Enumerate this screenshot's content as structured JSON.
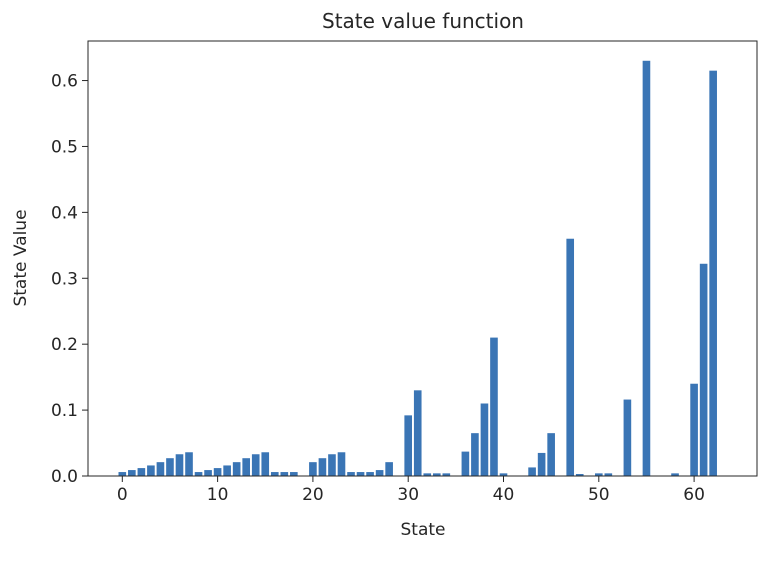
{
  "chart_data": {
    "type": "bar",
    "title": "State value function",
    "xlabel": "State",
    "ylabel": "State Value",
    "xlim": [
      -3.6,
      66.6
    ],
    "ylim": [
      0,
      0.66
    ],
    "xticks": [
      0,
      10,
      20,
      30,
      40,
      50,
      60
    ],
    "xtick_labels": [
      "0",
      "10",
      "20",
      "30",
      "40",
      "50",
      "60"
    ],
    "yticks": [
      0,
      0.1,
      0.2,
      0.3,
      0.4,
      0.5,
      0.6
    ],
    "ytick_labels": [
      "0.0",
      "0.1",
      "0.2",
      "0.3",
      "0.4",
      "0.5",
      "0.6"
    ],
    "grid": false,
    "bar_color": "#3a75b5",
    "categories": [
      0,
      1,
      2,
      3,
      4,
      5,
      6,
      7,
      8,
      9,
      10,
      11,
      12,
      13,
      14,
      15,
      16,
      17,
      18,
      19,
      20,
      21,
      22,
      23,
      24,
      25,
      26,
      27,
      28,
      29,
      30,
      31,
      32,
      33,
      34,
      35,
      36,
      37,
      38,
      39,
      40,
      41,
      42,
      43,
      44,
      45,
      46,
      47,
      48,
      49,
      50,
      51,
      52,
      53,
      54,
      55,
      56,
      57,
      58,
      59,
      60,
      61,
      62
    ],
    "values": [
      0.006,
      0.009,
      0.012,
      0.016,
      0.021,
      0.027,
      0.033,
      0.036,
      0.006,
      0.009,
      0.012,
      0.016,
      0.021,
      0.027,
      0.033,
      0.036,
      0.006,
      0.006,
      0.006,
      0.0,
      0.021,
      0.027,
      0.033,
      0.036,
      0.006,
      0.006,
      0.006,
      0.009,
      0.021,
      0.0,
      0.092,
      0.13,
      0.004,
      0.004,
      0.004,
      0.0,
      0.037,
      0.065,
      0.11,
      0.21,
      0.004,
      0.0,
      0.0,
      0.013,
      0.035,
      0.065,
      0.0,
      0.36,
      0.003,
      0.0,
      0.004,
      0.004,
      0.0,
      0.116,
      0.0,
      0.63,
      0.0,
      0.0,
      0.004,
      0.0,
      0.14,
      0.322,
      0.615
    ]
  }
}
